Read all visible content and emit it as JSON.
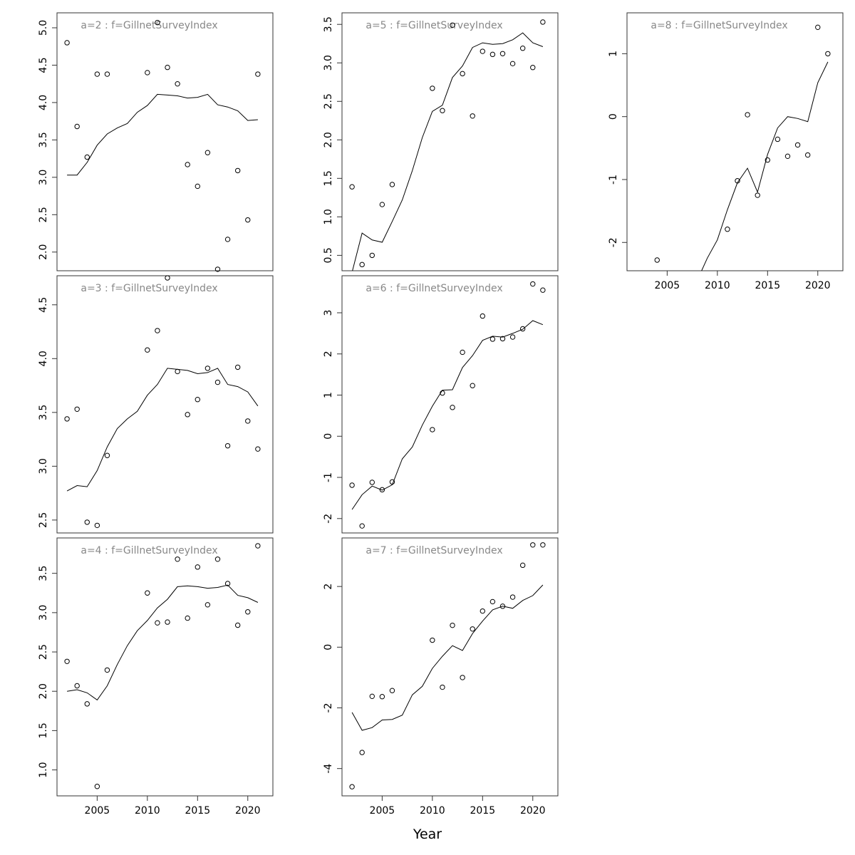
{
  "figure": {
    "xlabel": "Year"
  },
  "chart_data": [
    {
      "type": "scatter",
      "title": "a=2  :  f=GillnetSurveyIndex",
      "xlim": [
        2001,
        2022.5
      ],
      "ylim": [
        1.75,
        5.2
      ],
      "x_ticks": [],
      "y_ticks": [
        2.0,
        2.5,
        3.0,
        3.5,
        4.0,
        4.5,
        5.0
      ],
      "y_tick_labels": [
        "2.0",
        "2.5",
        "3.0",
        "3.5",
        "4.0",
        "4.5",
        "5.0"
      ],
      "observed": [
        [
          2002,
          4.8
        ],
        [
          2003,
          3.68
        ],
        [
          2004,
          3.27
        ],
        [
          2005,
          4.38
        ],
        [
          2006,
          4.38
        ],
        [
          2010,
          4.4
        ],
        [
          2011,
          5.07
        ],
        [
          2012,
          4.47
        ],
        [
          2013,
          4.25
        ],
        [
          2014,
          3.17
        ],
        [
          2015,
          2.88
        ],
        [
          2016,
          3.33
        ],
        [
          2017,
          1.77
        ],
        [
          2018,
          2.17
        ],
        [
          2019,
          3.09
        ],
        [
          2020,
          2.43
        ],
        [
          2021,
          4.38
        ]
      ],
      "fitted": [
        [
          2002,
          3.03
        ],
        [
          2003,
          3.03
        ],
        [
          2004,
          3.2
        ],
        [
          2005,
          3.43
        ],
        [
          2006,
          3.58
        ],
        [
          2007,
          3.66
        ],
        [
          2008,
          3.72
        ],
        [
          2009,
          3.87
        ],
        [
          2010,
          3.96
        ],
        [
          2011,
          4.11
        ],
        [
          2012,
          4.1
        ],
        [
          2013,
          4.09
        ],
        [
          2014,
          4.06
        ],
        [
          2015,
          4.07
        ],
        [
          2016,
          4.11
        ],
        [
          2017,
          3.97
        ],
        [
          2018,
          3.94
        ],
        [
          2019,
          3.89
        ],
        [
          2020,
          3.76
        ],
        [
          2021,
          3.77
        ]
      ]
    },
    {
      "type": "scatter",
      "title": "a=3  :  f=GillnetSurveyIndex",
      "xlim": [
        2001,
        2022.5
      ],
      "ylim": [
        2.38,
        4.77
      ],
      "x_ticks": [],
      "y_ticks": [
        2.5,
        3.0,
        3.5,
        4.0,
        4.5
      ],
      "y_tick_labels": [
        "2.5",
        "3.0",
        "3.5",
        "4.0",
        "4.5"
      ],
      "observed": [
        [
          2002,
          3.44
        ],
        [
          2003,
          3.53
        ],
        [
          2004,
          2.48
        ],
        [
          2005,
          2.45
        ],
        [
          2006,
          3.1
        ],
        [
          2010,
          4.08
        ],
        [
          2011,
          4.26
        ],
        [
          2012,
          4.75
        ],
        [
          2013,
          3.88
        ],
        [
          2014,
          3.48
        ],
        [
          2015,
          3.62
        ],
        [
          2016,
          3.91
        ],
        [
          2017,
          3.78
        ],
        [
          2018,
          3.19
        ],
        [
          2019,
          3.92
        ],
        [
          2020,
          3.42
        ],
        [
          2021,
          3.16
        ]
      ],
      "fitted": [
        [
          2002,
          2.77
        ],
        [
          2003,
          2.82
        ],
        [
          2004,
          2.81
        ],
        [
          2005,
          2.96
        ],
        [
          2006,
          3.18
        ],
        [
          2007,
          3.35
        ],
        [
          2008,
          3.44
        ],
        [
          2009,
          3.51
        ],
        [
          2010,
          3.66
        ],
        [
          2011,
          3.76
        ],
        [
          2012,
          3.91
        ],
        [
          2013,
          3.9
        ],
        [
          2014,
          3.89
        ],
        [
          2015,
          3.86
        ],
        [
          2016,
          3.87
        ],
        [
          2017,
          3.91
        ],
        [
          2018,
          3.76
        ],
        [
          2019,
          3.74
        ],
        [
          2020,
          3.69
        ],
        [
          2021,
          3.56
        ]
      ]
    },
    {
      "type": "scatter",
      "title": "a=4  :  f=GillnetSurveyIndex",
      "xlim": [
        2001,
        2022.5
      ],
      "ylim": [
        0.67,
        3.95
      ],
      "x_ticks": [
        2005,
        2010,
        2015,
        2020
      ],
      "x_tick_labels": [
        "2005",
        "2010",
        "2015",
        "2020"
      ],
      "y_ticks": [
        1.0,
        1.5,
        2.0,
        2.5,
        3.0,
        3.5
      ],
      "y_tick_labels": [
        "1.0",
        "1.5",
        "2.0",
        "2.5",
        "3.0",
        "3.5"
      ],
      "observed": [
        [
          2002,
          2.38
        ],
        [
          2003,
          2.07
        ],
        [
          2004,
          1.84
        ],
        [
          2005,
          0.79
        ],
        [
          2006,
          2.27
        ],
        [
          2010,
          3.25
        ],
        [
          2011,
          2.87
        ],
        [
          2012,
          2.88
        ],
        [
          2013,
          3.68
        ],
        [
          2014,
          2.93
        ],
        [
          2015,
          3.58
        ],
        [
          2016,
          3.1
        ],
        [
          2017,
          3.68
        ],
        [
          2018,
          3.37
        ],
        [
          2019,
          2.84
        ],
        [
          2020,
          3.01
        ],
        [
          2021,
          3.85
        ]
      ],
      "fitted": [
        [
          2002,
          2.0
        ],
        [
          2003,
          2.02
        ],
        [
          2004,
          1.98
        ],
        [
          2005,
          1.89
        ],
        [
          2006,
          2.07
        ],
        [
          2007,
          2.34
        ],
        [
          2008,
          2.58
        ],
        [
          2009,
          2.77
        ],
        [
          2010,
          2.9
        ],
        [
          2011,
          3.06
        ],
        [
          2012,
          3.17
        ],
        [
          2013,
          3.33
        ],
        [
          2014,
          3.34
        ],
        [
          2015,
          3.33
        ],
        [
          2016,
          3.31
        ],
        [
          2017,
          3.32
        ],
        [
          2018,
          3.35
        ],
        [
          2019,
          3.22
        ],
        [
          2020,
          3.19
        ],
        [
          2021,
          3.13
        ]
      ]
    },
    {
      "type": "scatter",
      "title": "a=5  :  f=GillnetSurveyIndex",
      "xlim": [
        2001,
        2022.5
      ],
      "ylim": [
        0.3,
        3.65
      ],
      "x_ticks": [],
      "y_ticks": [
        0.5,
        1.0,
        1.5,
        2.0,
        2.5,
        3.0,
        3.5
      ],
      "y_tick_labels": [
        "0.5",
        "1.0",
        "1.5",
        "2.0",
        "2.5",
        "3.0",
        "3.5"
      ],
      "observed": [
        [
          2002,
          1.39
        ],
        [
          2003,
          0.38
        ],
        [
          2004,
          0.5
        ],
        [
          2005,
          1.16
        ],
        [
          2006,
          1.42
        ],
        [
          2010,
          2.67
        ],
        [
          2011,
          2.38
        ],
        [
          2012,
          3.49
        ],
        [
          2013,
          2.86
        ],
        [
          2014,
          2.31
        ],
        [
          2015,
          3.15
        ],
        [
          2016,
          3.11
        ],
        [
          2017,
          3.12
        ],
        [
          2018,
          2.99
        ],
        [
          2019,
          3.19
        ],
        [
          2020,
          2.94
        ],
        [
          2021,
          3.53
        ]
      ],
      "fitted": [
        [
          2002,
          0.28
        ],
        [
          2003,
          0.79
        ],
        [
          2004,
          0.7
        ],
        [
          2005,
          0.67
        ],
        [
          2006,
          0.94
        ],
        [
          2007,
          1.22
        ],
        [
          2008,
          1.6
        ],
        [
          2009,
          2.03
        ],
        [
          2010,
          2.37
        ],
        [
          2011,
          2.45
        ],
        [
          2012,
          2.81
        ],
        [
          2013,
          2.96
        ],
        [
          2014,
          3.2
        ],
        [
          2015,
          3.26
        ],
        [
          2016,
          3.24
        ],
        [
          2017,
          3.25
        ],
        [
          2018,
          3.3
        ],
        [
          2019,
          3.39
        ],
        [
          2020,
          3.26
        ],
        [
          2021,
          3.21
        ]
      ]
    },
    {
      "type": "scatter",
      "title": "a=6  :  f=GillnetSurveyIndex",
      "xlim": [
        2001,
        2022.5
      ],
      "ylim": [
        -2.35,
        3.9
      ],
      "x_ticks": [],
      "y_ticks": [
        -2,
        -1,
        0,
        1,
        2,
        3
      ],
      "y_tick_labels": [
        "-2",
        "-1",
        "0",
        "1",
        "2",
        "3"
      ],
      "observed": [
        [
          2002,
          -1.19
        ],
        [
          2003,
          -2.18
        ],
        [
          2004,
          -1.12
        ],
        [
          2005,
          -1.3
        ],
        [
          2006,
          -1.11
        ],
        [
          2010,
          0.16
        ],
        [
          2011,
          1.05
        ],
        [
          2012,
          0.7
        ],
        [
          2013,
          2.04
        ],
        [
          2014,
          1.23
        ],
        [
          2015,
          2.92
        ],
        [
          2016,
          2.36
        ],
        [
          2017,
          2.37
        ],
        [
          2018,
          2.41
        ],
        [
          2019,
          2.61
        ],
        [
          2020,
          3.7
        ],
        [
          2021,
          3.55
        ]
      ],
      "fitted": [
        [
          2002,
          -1.78
        ],
        [
          2003,
          -1.42
        ],
        [
          2004,
          -1.21
        ],
        [
          2005,
          -1.31
        ],
        [
          2006,
          -1.18
        ],
        [
          2007,
          -0.55
        ],
        [
          2008,
          -0.26
        ],
        [
          2009,
          0.27
        ],
        [
          2010,
          0.73
        ],
        [
          2011,
          1.12
        ],
        [
          2012,
          1.13
        ],
        [
          2013,
          1.67
        ],
        [
          2014,
          1.96
        ],
        [
          2015,
          2.33
        ],
        [
          2016,
          2.43
        ],
        [
          2017,
          2.41
        ],
        [
          2018,
          2.5
        ],
        [
          2019,
          2.6
        ],
        [
          2020,
          2.81
        ],
        [
          2021,
          2.71
        ]
      ]
    },
    {
      "type": "scatter",
      "title": "a=7  :  f=GillnetSurveyIndex",
      "xlim": [
        2001,
        2022.5
      ],
      "ylim": [
        -4.9,
        3.6
      ],
      "x_ticks": [
        2005,
        2010,
        2015,
        2020
      ],
      "x_tick_labels": [
        "2005",
        "2010",
        "2015",
        "2020"
      ],
      "y_ticks": [
        -4,
        -2,
        0,
        2
      ],
      "y_tick_labels": [
        "-4",
        "-2",
        "0",
        "2"
      ],
      "observed": [
        [
          2002,
          -4.6
        ],
        [
          2003,
          -3.47
        ],
        [
          2004,
          -1.62
        ],
        [
          2005,
          -1.63
        ],
        [
          2006,
          -1.43
        ],
        [
          2010,
          0.23
        ],
        [
          2011,
          -1.32
        ],
        [
          2012,
          0.72
        ],
        [
          2013,
          -1.0
        ],
        [
          2014,
          0.6
        ],
        [
          2015,
          1.19
        ],
        [
          2016,
          1.5
        ],
        [
          2017,
          1.35
        ],
        [
          2018,
          1.65
        ],
        [
          2019,
          2.7
        ],
        [
          2020,
          3.37
        ],
        [
          2021,
          3.37
        ]
      ],
      "observed_x_note": "",
      "fitted": [
        [
          2002,
          -2.15
        ],
        [
          2003,
          -2.74
        ],
        [
          2004,
          -2.65
        ],
        [
          2005,
          -2.4
        ],
        [
          2006,
          -2.38
        ],
        [
          2007,
          -2.24
        ],
        [
          2008,
          -1.57
        ],
        [
          2009,
          -1.29
        ],
        [
          2010,
          -0.7
        ],
        [
          2011,
          -0.3
        ],
        [
          2012,
          0.05
        ],
        [
          2013,
          -0.11
        ],
        [
          2014,
          0.45
        ],
        [
          2015,
          0.86
        ],
        [
          2016,
          1.23
        ],
        [
          2017,
          1.35
        ],
        [
          2018,
          1.28
        ],
        [
          2019,
          1.54
        ],
        [
          2020,
          1.7
        ],
        [
          2021,
          2.05
        ]
      ]
    },
    {
      "type": "scatter",
      "title": "a=8  :  f=GillnetSurveyIndex",
      "xlim": [
        2001,
        2022.5
      ],
      "ylim": [
        -2.45,
        1.65
      ],
      "x_ticks": [
        2005,
        2010,
        2015,
        2020
      ],
      "x_tick_labels": [
        "2005",
        "2010",
        "2015",
        "2020"
      ],
      "y_ticks": [
        -2,
        -1,
        0,
        1
      ],
      "y_tick_labels": [
        "-2",
        "-1",
        "0",
        "1"
      ],
      "observed": [
        [
          2004,
          -2.28
        ],
        [
          2011,
          -1.79
        ],
        [
          2012,
          -1.02
        ],
        [
          2013,
          0.03
        ],
        [
          2014,
          -1.25
        ],
        [
          2015,
          -0.69
        ],
        [
          2016,
          -0.36
        ],
        [
          2017,
          -0.63
        ],
        [
          2018,
          -0.45
        ],
        [
          2019,
          -0.61
        ],
        [
          2020,
          1.42
        ],
        [
          2021,
          1.0
        ]
      ],
      "fitted": [
        [
          2004,
          -2.6
        ],
        [
          2005,
          -2.6
        ],
        [
          2006,
          -2.6
        ],
        [
          2007,
          -2.6
        ],
        [
          2008,
          -2.6
        ],
        [
          2009,
          -2.25
        ],
        [
          2010,
          -1.96
        ],
        [
          2011,
          -1.48
        ],
        [
          2012,
          -1.05
        ],
        [
          2013,
          -0.82
        ],
        [
          2014,
          -1.2
        ],
        [
          2015,
          -0.6
        ],
        [
          2016,
          -0.18
        ],
        [
          2017,
          0.0
        ],
        [
          2018,
          -0.03
        ],
        [
          2019,
          -0.08
        ],
        [
          2020,
          0.54
        ],
        [
          2021,
          0.87
        ]
      ]
    }
  ]
}
